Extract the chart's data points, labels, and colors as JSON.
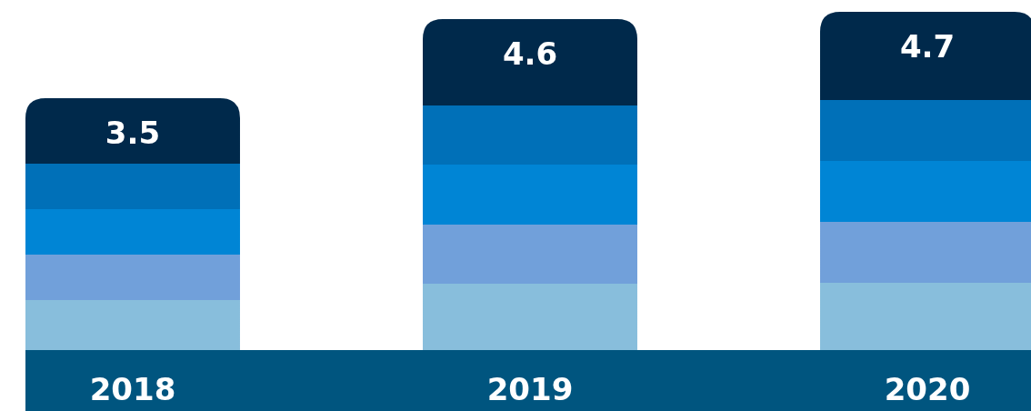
{
  "chart_data": {
    "type": "bar",
    "categories": [
      "2018",
      "2019",
      "2020"
    ],
    "values": [
      3.5,
      4.6,
      4.7
    ],
    "color": "#00294b",
    "data_labels": true
  }
}
